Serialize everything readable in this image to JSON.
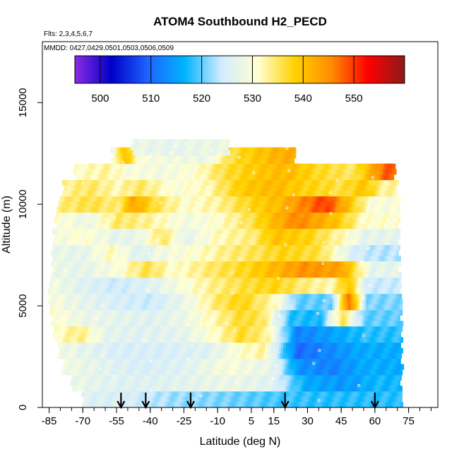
{
  "chart_data": {
    "type": "heatmap",
    "title": "ATOM4 Southbound H2_PECD",
    "flights_label": "Flts: 2,3,4,5,6,7",
    "dates_label": "MMDD: 0427,0429,0501,0503,0506,0509",
    "xlabel": "Latitude (deg N)",
    "ylabel": "Altitude (m)",
    "xlim": [
      -88,
      88
    ],
    "ylim": [
      0,
      18000
    ],
    "x_ticks": [
      -85,
      -70,
      -55,
      -40,
      -25,
      -10,
      5,
      15,
      30,
      45,
      60,
      75
    ],
    "x_tick_labels": [
      "-85",
      "-70",
      "-55",
      "-40",
      "-25",
      "-10",
      "5",
      "15",
      "30",
      "45",
      "60",
      "75"
    ],
    "x_minor_step": 5,
    "y_ticks": [
      0,
      5000,
      10000,
      15000
    ],
    "y_tick_labels": [
      "0",
      "5000",
      "10000",
      "15000"
    ],
    "colorbar": {
      "range": [
        495,
        560
      ],
      "tick_values": [
        500,
        510,
        520,
        530,
        540,
        550
      ],
      "tick_labels": [
        "500",
        "510",
        "520",
        "530",
        "540",
        "550"
      ],
      "colors": [
        "#8a2be2",
        "#0000c8",
        "#1e64ff",
        "#00b4ff",
        "#d2ecff",
        "#ffffd2",
        "#ffd200",
        "#ff8c00",
        "#ff0000",
        "#8b1a1a"
      ]
    },
    "profile_markers_lat": [
      -53,
      -42,
      -22,
      20,
      60
    ],
    "value_scale": "H2_PECD (colorbar units)",
    "rows_altitude_step_m": 800,
    "rows": [
      {
        "alt": 0,
        "xmin": -70,
        "xmax": 72,
        "segments": [
          [
            -70,
            526
          ],
          [
            -50,
            525
          ],
          [
            -30,
            522
          ],
          [
            -10,
            521
          ],
          [
            15,
            519
          ],
          [
            35,
            518
          ],
          [
            55,
            518
          ]
        ]
      },
      {
        "alt": 800,
        "xmin": -75,
        "xmax": 72,
        "segments": [
          [
            -75,
            528
          ],
          [
            -55,
            526
          ],
          [
            -35,
            526
          ],
          [
            -20,
            527
          ],
          [
            -5,
            528
          ],
          [
            15,
            526
          ],
          [
            28,
            516
          ],
          [
            45,
            514
          ],
          [
            60,
            517
          ]
        ]
      },
      {
        "alt": 1600,
        "xmin": -79,
        "xmax": 72,
        "segments": [
          [
            -79,
            529
          ],
          [
            -65,
            527
          ],
          [
            -45,
            525
          ],
          [
            -25,
            526
          ],
          [
            -5,
            530
          ],
          [
            15,
            527
          ],
          [
            25,
            514
          ],
          [
            40,
            512
          ],
          [
            55,
            516
          ]
        ]
      },
      {
        "alt": 2400,
        "xmin": -81,
        "xmax": 72,
        "segments": [
          [
            -81,
            529
          ],
          [
            -70,
            527
          ],
          [
            -55,
            525
          ],
          [
            -35,
            525
          ],
          [
            -15,
            526
          ],
          [
            0,
            531
          ],
          [
            10,
            533
          ],
          [
            25,
            510
          ],
          [
            40,
            513
          ],
          [
            55,
            516
          ]
        ]
      },
      {
        "alt": 3200,
        "xmin": -83,
        "xmax": 72,
        "segments": [
          [
            -83,
            531
          ],
          [
            -72,
            534
          ],
          [
            -60,
            527
          ],
          [
            -45,
            526
          ],
          [
            -25,
            527
          ],
          [
            -10,
            532
          ],
          [
            0,
            537
          ],
          [
            12,
            533
          ],
          [
            25,
            512
          ],
          [
            40,
            515
          ],
          [
            55,
            518
          ]
        ]
      },
      {
        "alt": 4000,
        "xmin": -84,
        "xmax": 72,
        "segments": [
          [
            -84,
            531
          ],
          [
            -70,
            528
          ],
          [
            -55,
            527
          ],
          [
            -40,
            526
          ],
          [
            -25,
            528
          ],
          [
            -10,
            533
          ],
          [
            0,
            537
          ],
          [
            10,
            535
          ],
          [
            22,
            518
          ],
          [
            35,
            517
          ],
          [
            45,
            536
          ],
          [
            55,
            520
          ]
        ]
      },
      {
        "alt": 4800,
        "xmin": -85,
        "xmax": 72,
        "segments": [
          [
            -85,
            530
          ],
          [
            -70,
            527
          ],
          [
            -55,
            525
          ],
          [
            -40,
            524
          ],
          [
            -25,
            528
          ],
          [
            -10,
            535
          ],
          [
            0,
            538
          ],
          [
            15,
            532
          ],
          [
            25,
            520
          ],
          [
            40,
            520
          ],
          [
            48,
            548
          ],
          [
            56,
            521
          ]
        ]
      },
      {
        "alt": 5600,
        "xmin": -85,
        "xmax": 72,
        "segments": [
          [
            -85,
            529
          ],
          [
            -70,
            526
          ],
          [
            -55,
            524
          ],
          [
            -40,
            526
          ],
          [
            -30,
            529
          ],
          [
            -15,
            533
          ],
          [
            0,
            536
          ],
          [
            15,
            538
          ],
          [
            28,
            534
          ],
          [
            40,
            532
          ],
          [
            48,
            540
          ],
          [
            56,
            524
          ]
        ]
      },
      {
        "alt": 6400,
        "xmin": -84,
        "xmax": 71,
        "segments": [
          [
            -84,
            528
          ],
          [
            -70,
            527
          ],
          [
            -55,
            530
          ],
          [
            -42,
            536
          ],
          [
            -30,
            531
          ],
          [
            -12,
            535
          ],
          [
            0,
            537
          ],
          [
            15,
            541
          ],
          [
            28,
            545
          ],
          [
            45,
            543
          ],
          [
            58,
            527
          ]
        ]
      },
      {
        "alt": 7200,
        "xmin": -84,
        "xmax": 71,
        "segments": [
          [
            -84,
            528
          ],
          [
            -70,
            527
          ],
          [
            -58,
            532
          ],
          [
            -45,
            526
          ],
          [
            -35,
            529
          ],
          [
            -20,
            531
          ],
          [
            -5,
            534
          ],
          [
            10,
            536
          ],
          [
            18,
            538
          ],
          [
            35,
            536
          ],
          [
            50,
            525
          ],
          [
            60,
            523
          ]
        ]
      },
      {
        "alt": 8000,
        "xmin": -83,
        "xmax": 71,
        "segments": [
          [
            -83,
            529
          ],
          [
            -70,
            531
          ],
          [
            -55,
            527
          ],
          [
            -45,
            528
          ],
          [
            -35,
            535
          ],
          [
            -25,
            527
          ],
          [
            -10,
            532
          ],
          [
            5,
            534
          ],
          [
            15,
            540
          ],
          [
            30,
            538
          ],
          [
            45,
            532
          ],
          [
            55,
            527
          ]
        ]
      },
      {
        "alt": 8800,
        "xmin": -82,
        "xmax": 71,
        "segments": [
          [
            -82,
            531
          ],
          [
            -68,
            528
          ],
          [
            -55,
            535
          ],
          [
            -40,
            533
          ],
          [
            -25,
            529
          ],
          [
            -10,
            531
          ],
          [
            5,
            536
          ],
          [
            15,
            541
          ],
          [
            25,
            546
          ],
          [
            42,
            540
          ],
          [
            55,
            531
          ]
        ]
      },
      {
        "alt": 9600,
        "xmin": -81,
        "xmax": 71,
        "segments": [
          [
            -81,
            534
          ],
          [
            -68,
            536
          ],
          [
            -55,
            534
          ],
          [
            -48,
            543
          ],
          [
            -38,
            536
          ],
          [
            -25,
            531
          ],
          [
            -10,
            533
          ],
          [
            5,
            538
          ],
          [
            18,
            541
          ],
          [
            28,
            546
          ],
          [
            38,
            550
          ],
          [
            48,
            540
          ],
          [
            58,
            530
          ]
        ]
      },
      {
        "alt": 10400,
        "xmin": -79,
        "xmax": 70,
        "segments": [
          [
            -79,
            533
          ],
          [
            -68,
            535
          ],
          [
            -55,
            532
          ],
          [
            -45,
            535
          ],
          [
            -30,
            530
          ],
          [
            -15,
            532
          ],
          [
            0,
            539
          ],
          [
            15,
            541
          ],
          [
            30,
            538
          ],
          [
            45,
            536
          ],
          [
            55,
            540
          ],
          [
            63,
            533
          ]
        ]
      },
      {
        "alt": 11200,
        "xmin": -74,
        "xmax": 69,
        "segments": [
          [
            -74,
            531
          ],
          [
            -60,
            533
          ],
          [
            -50,
            530
          ],
          [
            -35,
            529
          ],
          [
            -20,
            531
          ],
          [
            -8,
            536
          ],
          [
            5,
            539
          ],
          [
            20,
            541
          ],
          [
            35,
            537
          ],
          [
            50,
            535
          ],
          [
            58,
            542
          ],
          [
            64,
            548
          ]
        ]
      },
      {
        "alt": 12000,
        "xmin": -57,
        "xmax": 25,
        "segments": [
          [
            -57,
            529
          ],
          [
            -52,
            541
          ],
          [
            -45,
            530
          ],
          [
            -30,
            529
          ],
          [
            -15,
            528
          ],
          [
            -5,
            536
          ],
          [
            5,
            539
          ],
          [
            18,
            542
          ]
        ]
      },
      {
        "alt": 12400,
        "xmin": -48,
        "xmax": -5,
        "segments": [
          [
            -48,
            528
          ],
          [
            -30,
            527
          ],
          [
            -15,
            528
          ]
        ]
      }
    ]
  }
}
